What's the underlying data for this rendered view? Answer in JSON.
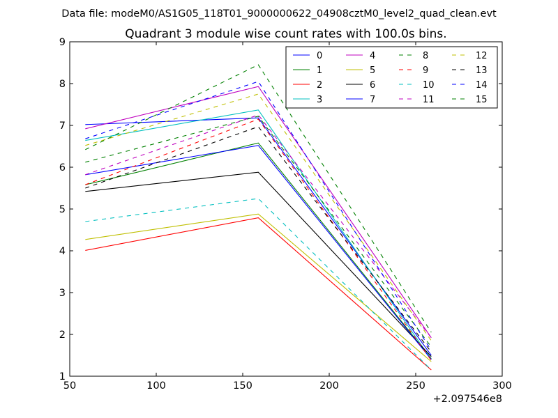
{
  "chart_data": {
    "type": "line",
    "suptitle": "Data file: modeM0/AS1G05_118T01_9000000622_04908cztM0_level2_quad_clean.evt",
    "title": "Quadrant 3 module wise count rates with 100.0s bins.",
    "xlabel": "",
    "ylabel": "",
    "x_offset_label": "+2.097546e8",
    "xlim": [
      50,
      300
    ],
    "ylim": [
      1,
      9
    ],
    "x_ticks": [
      50,
      100,
      150,
      200,
      250,
      300
    ],
    "y_ticks": [
      1,
      2,
      3,
      4,
      5,
      6,
      7,
      8,
      9
    ],
    "x": [
      59,
      159,
      259
    ],
    "legend_position": "upper-right",
    "legend_columns": 4,
    "series": [
      {
        "name": "0",
        "values": [
          7.02,
          7.18,
          1.5
        ],
        "color": "#0000ff",
        "style": "solid"
      },
      {
        "name": "1",
        "values": [
          5.58,
          6.58,
          1.42
        ],
        "color": "#008000",
        "style": "solid"
      },
      {
        "name": "2",
        "values": [
          4.01,
          4.79,
          1.15
        ],
        "color": "#ff0000",
        "style": "solid"
      },
      {
        "name": "3",
        "values": [
          6.64,
          7.37,
          1.4
        ],
        "color": "#00bfbf",
        "style": "solid"
      },
      {
        "name": "4",
        "values": [
          6.92,
          7.93,
          1.92
        ],
        "color": "#bf00bf",
        "style": "solid"
      },
      {
        "name": "5",
        "values": [
          4.27,
          4.88,
          1.35
        ],
        "color": "#bfbf00",
        "style": "solid"
      },
      {
        "name": "6",
        "values": [
          5.42,
          5.88,
          1.47
        ],
        "color": "#000000",
        "style": "solid"
      },
      {
        "name": "7",
        "values": [
          5.82,
          6.52,
          1.4
        ],
        "color": "#0000ff",
        "style": "solid"
      },
      {
        "name": "8",
        "values": [
          6.12,
          7.22,
          1.7
        ],
        "color": "#008000",
        "style": "dashed"
      },
      {
        "name": "9",
        "values": [
          5.58,
          7.15,
          1.38
        ],
        "color": "#ff0000",
        "style": "dashed"
      },
      {
        "name": "10",
        "values": [
          4.7,
          5.25,
          1.15
        ],
        "color": "#00bfbf",
        "style": "dashed"
      },
      {
        "name": "11",
        "values": [
          5.82,
          7.25,
          1.92
        ],
        "color": "#bf00bf",
        "style": "dashed"
      },
      {
        "name": "12",
        "values": [
          6.52,
          7.75,
          1.85
        ],
        "color": "#bfbf00",
        "style": "dashed"
      },
      {
        "name": "13",
        "values": [
          5.5,
          6.97,
          1.58
        ],
        "color": "#000000",
        "style": "dashed"
      },
      {
        "name": "14",
        "values": [
          6.68,
          8.05,
          1.62
        ],
        "color": "#0000ff",
        "style": "dashed"
      },
      {
        "name": "15",
        "values": [
          6.42,
          8.45,
          2.05
        ],
        "color": "#008000",
        "style": "dashed"
      }
    ]
  }
}
